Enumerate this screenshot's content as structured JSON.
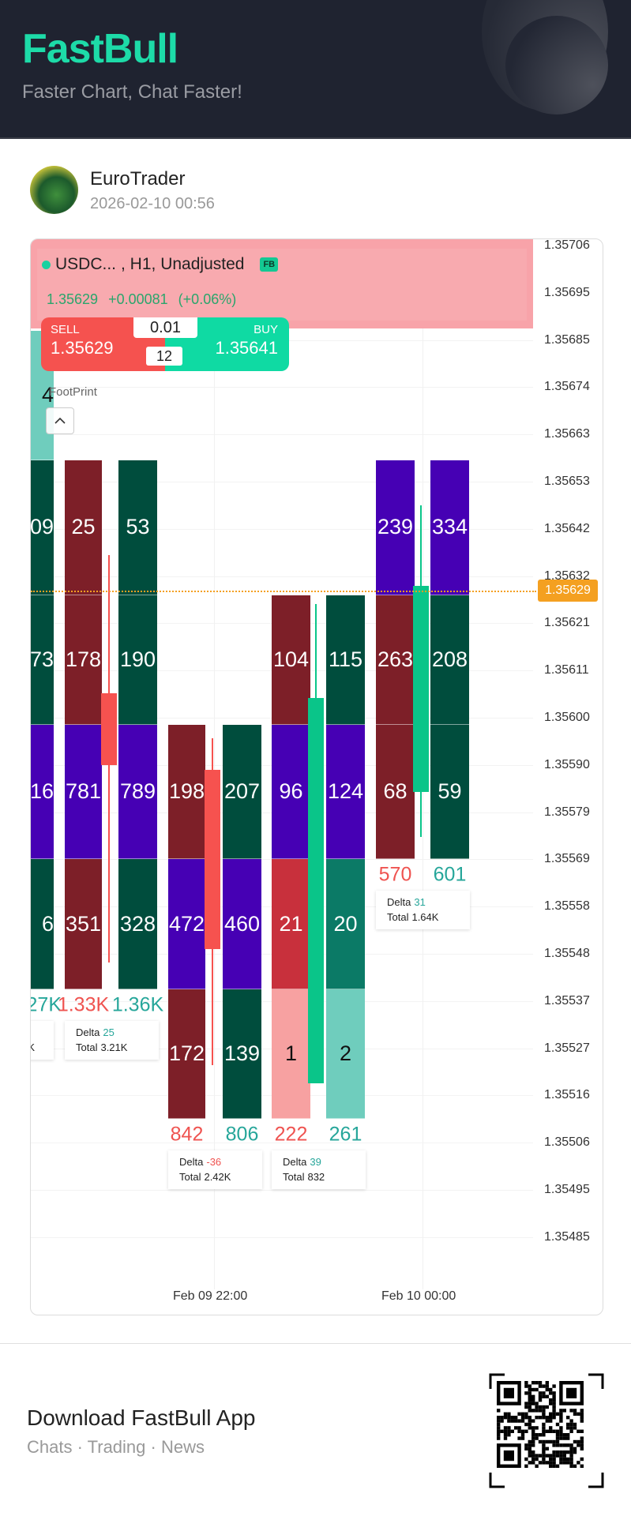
{
  "header": {
    "logo": "FastBull",
    "tagline": "Faster Chart, Chat Faster!"
  },
  "post": {
    "author": "EuroTrader",
    "timestamp": "2026-02-10 00:56"
  },
  "chart_header": {
    "symbol": "USDC...",
    "params": ", H1, Unadjusted",
    "badge": "FB",
    "last": "1.35629",
    "change": "+0.00081 (+0.06%)"
  },
  "trade": {
    "sell_label": "SELL",
    "sell_price": "1.35629",
    "buy_label": "BUY",
    "buy_price": "1.35641",
    "lot": "0.01",
    "spread": "12"
  },
  "indicator": {
    "label": "FootPrint"
  },
  "colors": {
    "maroon": "#7d1f28",
    "dkgreen": "#004d3d",
    "purple": "#4600b4",
    "red": "#c8303c",
    "pink": "#f7a1a1",
    "teal": "#0b7a66",
    "lightteal": "#6fcdbd",
    "up": "#0ac589",
    "down": "#f6524f",
    "uptext": "#26a69a",
    "downtext": "#ef5350",
    "current": "#f4a021"
  },
  "chart_data": {
    "type": "footprint",
    "y_ticks": [
      "1.35706",
      "1.35695",
      "1.35685",
      "1.35674",
      "1.35663",
      "1.35653",
      "1.35642",
      "1.35632",
      "1.35621",
      "1.35611",
      "1.35600",
      "1.35590",
      "1.35579",
      "1.35569",
      "1.35558",
      "1.35548",
      "1.35537",
      "1.35527",
      "1.35516",
      "1.35506",
      "1.35495",
      "1.35485"
    ],
    "x_ticks": [
      "Feb 09 22:00",
      "Feb 10 00:00"
    ],
    "current_price": "1.35629",
    "levels": [
      1.35687,
      1.35658,
      1.35628,
      1.35599,
      1.35569,
      1.3554,
      1.35511
    ],
    "columns": [
      {
        "cells": [
          {
            "r": 0,
            "v": "4",
            "c": "lightteal",
            "dark": true
          },
          {
            "r": 1,
            "v": "09",
            "c": "dkgreen"
          },
          {
            "r": 2,
            "v": "73",
            "c": "dkgreen"
          },
          {
            "r": 3,
            "v": "16",
            "c": "purple"
          },
          {
            "r": 4,
            "v": "6",
            "c": "dkgreen"
          }
        ],
        "total": "27K",
        "side": "up"
      },
      {
        "cells": [
          {
            "r": 1,
            "v": "25",
            "c": "maroon"
          },
          {
            "r": 2,
            "v": "178",
            "c": "maroon"
          },
          {
            "r": 3,
            "v": "781",
            "c": "purple"
          },
          {
            "r": 4,
            "v": "351",
            "c": "maroon"
          }
        ],
        "total": "1.33K",
        "side": "down"
      },
      {
        "cells": [
          {
            "r": 1,
            "v": "53",
            "c": "dkgreen"
          },
          {
            "r": 2,
            "v": "190",
            "c": "dkgreen"
          },
          {
            "r": 3,
            "v": "789",
            "c": "purple"
          },
          {
            "r": 4,
            "v": "328",
            "c": "dkgreen"
          }
        ],
        "total": "1.36K",
        "side": "up"
      },
      {
        "cells": [
          {
            "r": 3,
            "v": "198",
            "c": "maroon"
          },
          {
            "r": 4,
            "v": "472",
            "c": "purple"
          },
          {
            "r": 5,
            "v": "172",
            "c": "maroon"
          }
        ],
        "total": "842",
        "side": "down"
      },
      {
        "cells": [
          {
            "r": 3,
            "v": "207",
            "c": "dkgreen"
          },
          {
            "r": 4,
            "v": "460",
            "c": "purple"
          },
          {
            "r": 5,
            "v": "139",
            "c": "dkgreen"
          }
        ],
        "total": "806",
        "side": "up"
      },
      {
        "cells": [
          {
            "r": 2,
            "v": "104",
            "c": "maroon"
          },
          {
            "r": 3,
            "v": "96",
            "c": "purple"
          },
          {
            "r": 4,
            "v": "21",
            "c": "red"
          },
          {
            "r": 5,
            "v": "1",
            "c": "pink",
            "dark": true
          }
        ],
        "total": "222",
        "side": "down"
      },
      {
        "cells": [
          {
            "r": 2,
            "v": "115",
            "c": "dkgreen"
          },
          {
            "r": 3,
            "v": "124",
            "c": "purple"
          },
          {
            "r": 4,
            "v": "20",
            "c": "teal"
          },
          {
            "r": 5,
            "v": "2",
            "c": "lightteal",
            "dark": true
          }
        ],
        "total": "261",
        "side": "up"
      },
      {
        "cells": [
          {
            "r": 1,
            "v": "239",
            "c": "purple"
          },
          {
            "r": 2,
            "v": "263",
            "c": "maroon"
          },
          {
            "r": 3,
            "v": "68",
            "c": "maroon"
          }
        ],
        "total": "570",
        "side": "down"
      },
      {
        "cells": [
          {
            "r": 1,
            "v": "334",
            "c": "purple"
          },
          {
            "r": 2,
            "v": "208",
            "c": "dkgreen"
          },
          {
            "r": 3,
            "v": "59",
            "c": "dkgreen"
          }
        ],
        "total": "601",
        "side": "up"
      }
    ],
    "deltas": [
      {
        "delta_label": "Delta",
        "delta": "",
        "total_label": "",
        "total": "K",
        "sign": "up"
      },
      {
        "delta_label": "Delta",
        "delta": "25",
        "total_label": "Total",
        "total": "3.21K",
        "sign": "up"
      },
      {
        "delta_label": "Delta",
        "delta": "-36",
        "total_label": "Total",
        "total": "2.42K",
        "sign": "down"
      },
      {
        "delta_label": "Delta",
        "delta": "39",
        "total_label": "Total",
        "total": "832",
        "sign": "up"
      },
      {
        "delta_label": "Delta",
        "delta": "31",
        "total_label": "Total",
        "total": "1.64K",
        "sign": "up"
      }
    ],
    "candles": [
      {
        "open": 1.35606,
        "close": 1.3559,
        "high": 1.35637,
        "low": 1.35546
      },
      {
        "open": 1.35589,
        "close": 1.35549,
        "high": 1.35596,
        "low": 1.35523
      },
      {
        "open": 1.35519,
        "close": 1.35605,
        "high": 1.35626,
        "low": 1.35519
      },
      {
        "open": 1.35584,
        "close": 1.3563,
        "high": 1.35648,
        "low": 1.35574
      }
    ]
  },
  "footer": {
    "title": "Download FastBull App",
    "subtitle": "Chats · Trading · News"
  }
}
